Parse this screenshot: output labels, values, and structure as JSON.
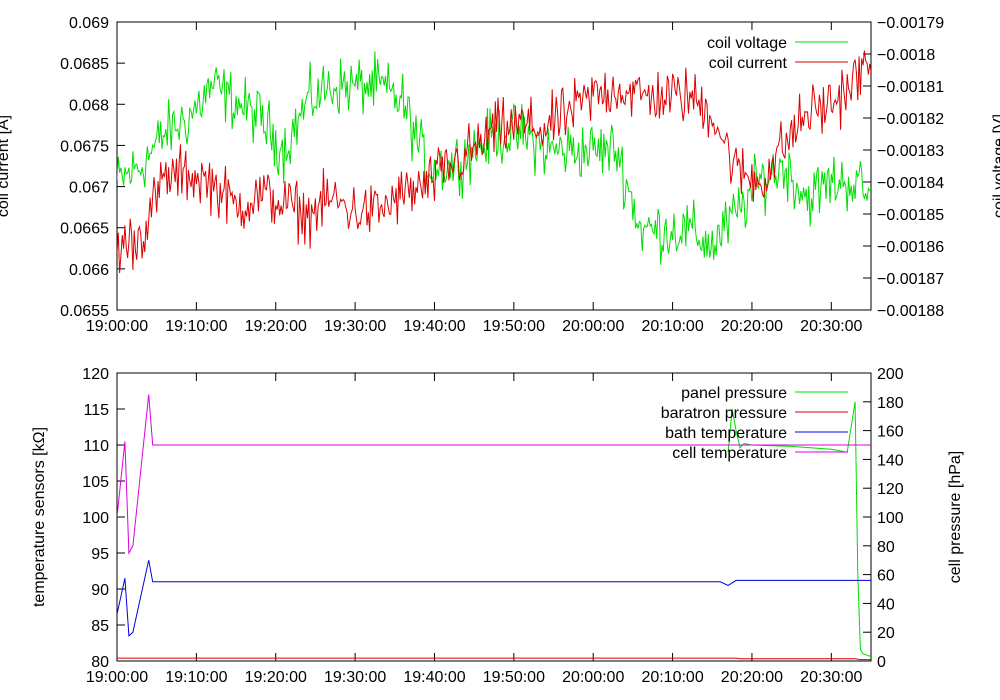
{
  "chart_data": [
    {
      "type": "line",
      "title": "",
      "xlabel": "",
      "ylabel": "coil current [A]",
      "y2label": "coil voltage [V]",
      "xlim": [
        "19:00:00",
        "20:35:00"
      ],
      "xticks": [
        "19:00:00",
        "19:10:00",
        "19:20:00",
        "19:30:00",
        "19:40:00",
        "19:50:00",
        "20:00:00",
        "20:10:00",
        "20:20:00",
        "20:30:00"
      ],
      "ylim": [
        0.0655,
        0.069
      ],
      "yticks": [
        "0.0655",
        "0.066",
        "0.0665",
        "0.067",
        "0.0675",
        "0.068",
        "0.0685",
        "0.069"
      ],
      "y2lim": [
        -0.00188,
        -0.00179
      ],
      "y2ticks": [
        "-0.00188",
        "-0.00187",
        "-0.00186",
        "-0.00185",
        "-0.00184",
        "-0.00183",
        "-0.00182",
        "-0.00181",
        "-0.0018",
        "-0.00179"
      ],
      "legend_position": "top-right",
      "series": [
        {
          "name": "coil voltage",
          "axis": "right",
          "color": "#00dd00",
          "x": [
            "19:00:00",
            "19:03:00",
            "19:06:00",
            "19:09:00",
            "19:12:00",
            "19:15:00",
            "19:18:00",
            "19:21:00",
            "19:24:00",
            "19:27:00",
            "19:30:00",
            "19:33:00",
            "19:36:00",
            "19:39:00",
            "19:42:00",
            "19:45:00",
            "19:48:00",
            "19:51:00",
            "19:54:00",
            "19:57:00",
            "20:00:00",
            "20:03:00",
            "20:06:00",
            "20:09:00",
            "20:12:00",
            "20:15:00",
            "20:18:00",
            "20:21:00",
            "20:24:00",
            "20:27:00",
            "20:30:00",
            "20:33:00",
            "20:35:00"
          ],
          "values": [
            -0.00184,
            -0.001835,
            -0.001825,
            -0.00182,
            -0.00181,
            -0.001815,
            -0.00182,
            -0.00183,
            -0.001815,
            -0.00181,
            -0.00181,
            -0.00181,
            -0.001815,
            -0.001835,
            -0.001835,
            -0.00183,
            -0.001825,
            -0.001825,
            -0.00183,
            -0.00183,
            -0.00183,
            -0.00183,
            -0.001855,
            -0.001855,
            -0.001855,
            -0.00186,
            -0.00185,
            -0.00184,
            -0.001835,
            -0.001845,
            -0.00184,
            -0.00184,
            -0.001845
          ],
          "noise": 4.5e-06
        },
        {
          "name": "coil current",
          "axis": "left",
          "color": "#dd0000",
          "x": [
            "19:00:00",
            "19:03:00",
            "19:06:00",
            "19:09:00",
            "19:12:00",
            "19:15:00",
            "19:18:00",
            "19:21:00",
            "19:24:00",
            "19:27:00",
            "19:30:00",
            "19:33:00",
            "19:36:00",
            "19:39:00",
            "19:42:00",
            "19:45:00",
            "19:48:00",
            "19:51:00",
            "19:54:00",
            "19:57:00",
            "20:00:00",
            "20:03:00",
            "20:06:00",
            "20:09:00",
            "20:12:00",
            "20:15:00",
            "20:18:00",
            "20:21:00",
            "20:24:00",
            "20:27:00",
            "20:30:00",
            "20:33:00",
            "20:35:00"
          ],
          "values": [
            0.06625,
            0.0664,
            0.0671,
            0.06715,
            0.06705,
            0.06675,
            0.0669,
            0.0668,
            0.06665,
            0.06685,
            0.0667,
            0.0667,
            0.0669,
            0.067,
            0.06725,
            0.06745,
            0.0677,
            0.06775,
            0.0677,
            0.0679,
            0.0681,
            0.0682,
            0.0681,
            0.0681,
            0.0681,
            0.0679,
            0.0672,
            0.06705,
            0.0675,
            0.0679,
            0.068,
            0.0683,
            0.0685
          ],
          "noise": 0.00017
        }
      ]
    },
    {
      "type": "line",
      "title": "",
      "xlabel": "",
      "ylabel": "temperature sensors [kΩ]",
      "y2label": "cell pressure [hPa]",
      "xlim": [
        "19:00:00",
        "20:35:00"
      ],
      "xticks": [
        "19:00:00",
        "19:10:00",
        "19:20:00",
        "19:30:00",
        "19:40:00",
        "19:50:00",
        "20:00:00",
        "20:10:00",
        "20:20:00",
        "20:30:00"
      ],
      "ylim": [
        80,
        120
      ],
      "yticks": [
        "80",
        "85",
        "90",
        "95",
        "100",
        "105",
        "110",
        "115",
        "120"
      ],
      "y2lim": [
        0,
        200
      ],
      "y2ticks": [
        "0",
        "20",
        "40",
        "60",
        "80",
        "100",
        "120",
        "140",
        "160",
        "180",
        "200"
      ],
      "legend_position": "top-right",
      "series": [
        {
          "name": "panel pressure",
          "axis": "right",
          "color": "#00dd00",
          "x": [
            "20:17:00",
            "20:17:30",
            "20:18:00",
            "20:18:30",
            "20:19:00",
            "20:20:00",
            "20:25:00",
            "20:30:00",
            "20:32:00",
            "20:33:00",
            "20:33:20",
            "20:33:40",
            "20:34:00",
            "20:35:00"
          ],
          "values": [
            145,
            175,
            160,
            148,
            151,
            150,
            149,
            147,
            145,
            180,
            60,
            8,
            5,
            3
          ]
        },
        {
          "name": "baratron pressure",
          "axis": "right",
          "color": "#dd0000",
          "x": [
            "19:00:00",
            "20:18:00",
            "20:18:30",
            "20:33:00",
            "20:33:40",
            "20:35:00"
          ],
          "values": [
            2,
            2,
            1.5,
            1.5,
            1,
            1
          ]
        },
        {
          "name": "bath temperature",
          "axis": "left",
          "color": "#0000dd",
          "x": [
            "19:00:00",
            "19:01:00",
            "19:01:30",
            "19:02:00",
            "19:04:00",
            "19:04:30",
            "19:05:00",
            "19:10:00",
            "19:30:00",
            "19:50:00",
            "20:10:00",
            "20:16:00",
            "20:17:00",
            "20:18:00",
            "20:30:00",
            "20:33:00",
            "20:35:00"
          ],
          "values": [
            86.5,
            91.5,
            83.5,
            84,
            94,
            91,
            91,
            91,
            91,
            91,
            91,
            91,
            90.5,
            91.2,
            91.2,
            91.2,
            91.2
          ]
        },
        {
          "name": "cell temperature",
          "axis": "left",
          "color": "#dd00dd",
          "x": [
            "19:00:00",
            "19:01:00",
            "19:01:30",
            "19:02:00",
            "19:04:00",
            "19:04:30",
            "19:05:00",
            "19:10:00",
            "19:30:00",
            "19:50:00",
            "20:10:00",
            "20:30:00",
            "20:35:00"
          ],
          "values": [
            100,
            110.5,
            95,
            96,
            117,
            110,
            110,
            110,
            110,
            110,
            110,
            110,
            110
          ]
        }
      ]
    }
  ]
}
